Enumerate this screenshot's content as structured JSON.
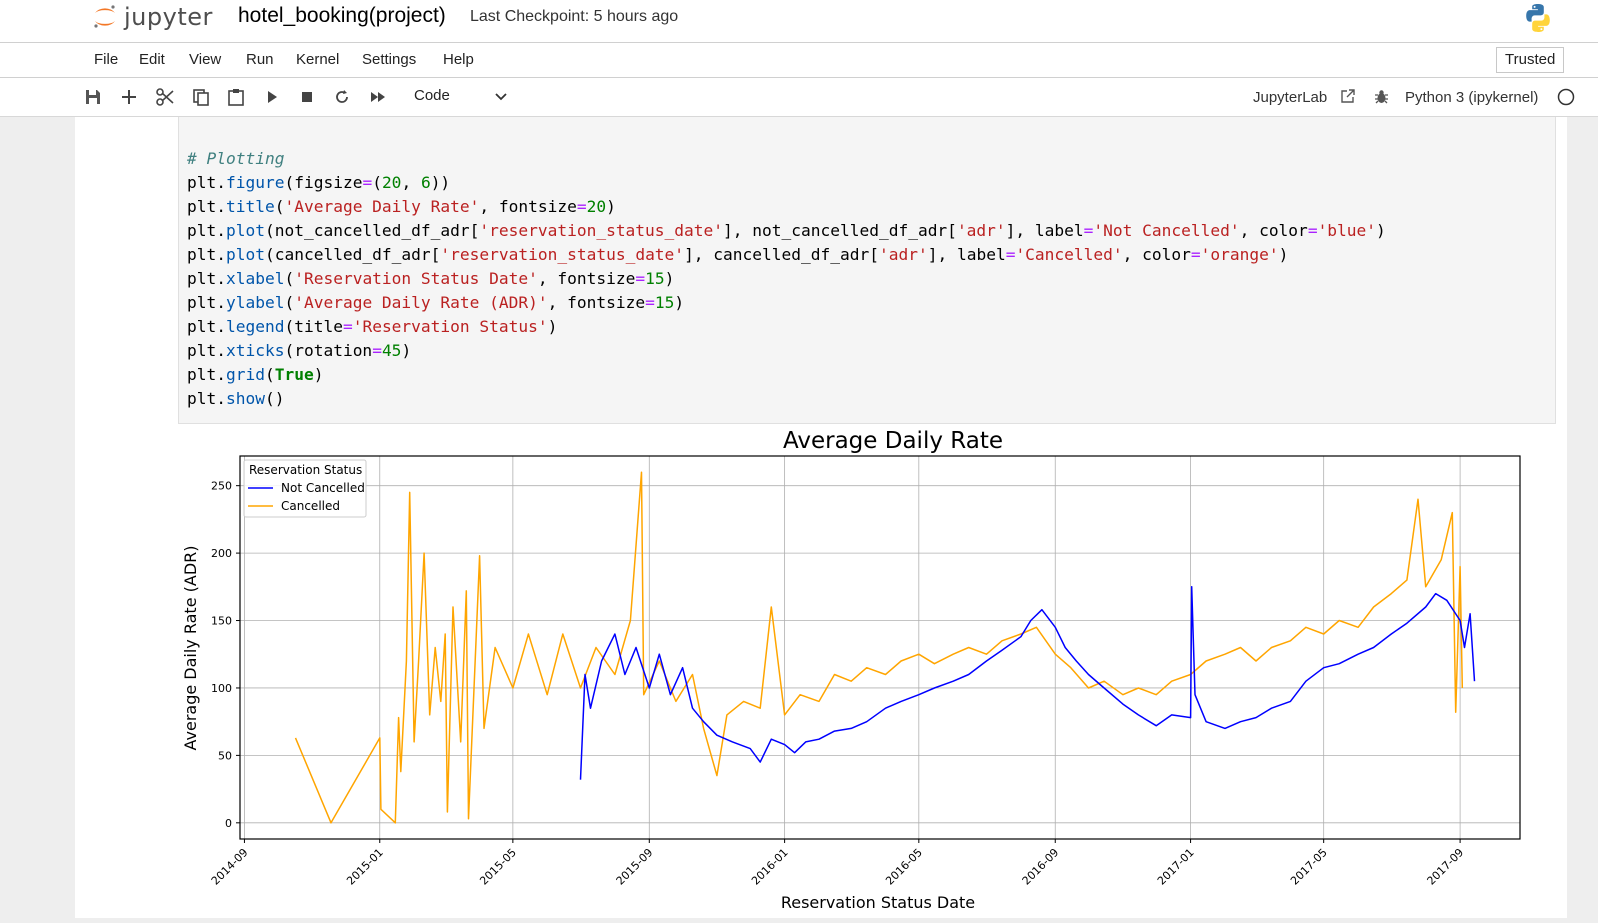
{
  "header": {
    "logo_text": "jupyter",
    "notebook_name": "hotel_booking(project)",
    "checkpoint": "Last Checkpoint: 5 hours ago"
  },
  "menu": {
    "items": [
      "File",
      "Edit",
      "View",
      "Run",
      "Kernel",
      "Settings",
      "Help"
    ],
    "trusted": "Trusted"
  },
  "toolbar": {
    "icons": [
      "save-icon",
      "add-cell-icon",
      "cut-icon",
      "copy-icon",
      "paste-icon",
      "run-icon",
      "stop-icon",
      "restart-icon",
      "fast-forward-icon"
    ],
    "cell_type": "Code",
    "jupyterlab": "JupyterLab",
    "kernel": "Python 3 (ipykernel)"
  },
  "code": {
    "lines": [
      "# Plotting",
      "plt.figure(figsize=(20, 6))",
      "plt.title('Average Daily Rate', fontsize=20)",
      "plt.plot(not_cancelled_df_adr['reservation_status_date'], not_cancelled_df_adr['adr'], label='Not Cancelled', color='blue')",
      "plt.plot(cancelled_df_adr['reservation_status_date'], cancelled_df_adr['adr'], label='Cancelled', color='orange')",
      "plt.xlabel('Reservation Status Date', fontsize=15)",
      "plt.ylabel('Average Daily Rate (ADR)', fontsize=15)",
      "plt.legend(title='Reservation Status')",
      "plt.xticks(rotation=45)",
      "plt.grid(True)",
      "plt.show()"
    ]
  },
  "chart_data": {
    "type": "line",
    "title": "Average Daily Rate",
    "xlabel": "Reservation Status Date",
    "ylabel": "Average Daily Rate (ADR)",
    "x_tick_labels": [
      "2014-09",
      "2015-01",
      "2015-05",
      "2015-09",
      "2016-01",
      "2016-05",
      "2016-09",
      "2017-01",
      "2017-05",
      "2017-09"
    ],
    "y_ticks": [
      0,
      50,
      100,
      150,
      200,
      250
    ],
    "ylim": [
      -12,
      272
    ],
    "xlim": [
      "2014-08-28",
      "2017-10-25"
    ],
    "grid": true,
    "legend": {
      "title": "Reservation Status",
      "placement": "top-left"
    },
    "series": [
      {
        "name": "Not Cancelled",
        "color": "#0000ff",
        "points": [
          [
            "2015-07-01",
            32
          ],
          [
            "2015-07-05",
            110
          ],
          [
            "2015-07-10",
            85
          ],
          [
            "2015-07-20",
            120
          ],
          [
            "2015-08-01",
            140
          ],
          [
            "2015-08-10",
            110
          ],
          [
            "2015-08-20",
            130
          ],
          [
            "2015-09-01",
            100
          ],
          [
            "2015-09-10",
            125
          ],
          [
            "2015-09-20",
            95
          ],
          [
            "2015-10-01",
            115
          ],
          [
            "2015-10-10",
            85
          ],
          [
            "2015-10-20",
            75
          ],
          [
            "2015-11-01",
            65
          ],
          [
            "2015-11-15",
            60
          ],
          [
            "2015-12-01",
            55
          ],
          [
            "2015-12-10",
            45
          ],
          [
            "2015-12-20",
            62
          ],
          [
            "2016-01-01",
            58
          ],
          [
            "2016-01-10",
            52
          ],
          [
            "2016-01-20",
            60
          ],
          [
            "2016-02-01",
            62
          ],
          [
            "2016-02-15",
            68
          ],
          [
            "2016-03-01",
            70
          ],
          [
            "2016-03-15",
            75
          ],
          [
            "2016-04-01",
            85
          ],
          [
            "2016-04-15",
            90
          ],
          [
            "2016-05-01",
            95
          ],
          [
            "2016-05-15",
            100
          ],
          [
            "2016-06-01",
            105
          ],
          [
            "2016-06-15",
            110
          ],
          [
            "2016-07-01",
            120
          ],
          [
            "2016-07-15",
            128
          ],
          [
            "2016-08-01",
            138
          ],
          [
            "2016-08-10",
            150
          ],
          [
            "2016-08-20",
            158
          ],
          [
            "2016-09-01",
            145
          ],
          [
            "2016-09-10",
            130
          ],
          [
            "2016-09-20",
            120
          ],
          [
            "2016-10-01",
            110
          ],
          [
            "2016-10-15",
            100
          ],
          [
            "2016-11-01",
            88
          ],
          [
            "2016-11-15",
            80
          ],
          [
            "2016-12-01",
            72
          ],
          [
            "2016-12-15",
            80
          ],
          [
            "2017-01-01",
            78
          ],
          [
            "2017-01-02",
            175
          ],
          [
            "2017-01-05",
            95
          ],
          [
            "2017-01-15",
            75
          ],
          [
            "2017-02-01",
            70
          ],
          [
            "2017-02-15",
            75
          ],
          [
            "2017-03-01",
            78
          ],
          [
            "2017-03-15",
            85
          ],
          [
            "2017-04-01",
            90
          ],
          [
            "2017-04-15",
            105
          ],
          [
            "2017-05-01",
            115
          ],
          [
            "2017-05-15",
            118
          ],
          [
            "2017-06-01",
            125
          ],
          [
            "2017-06-15",
            130
          ],
          [
            "2017-07-01",
            140
          ],
          [
            "2017-07-15",
            148
          ],
          [
            "2017-08-01",
            160
          ],
          [
            "2017-08-10",
            170
          ],
          [
            "2017-08-20",
            165
          ],
          [
            "2017-09-01",
            150
          ],
          [
            "2017-09-05",
            130
          ],
          [
            "2017-09-10",
            155
          ],
          [
            "2017-09-14",
            105
          ]
        ]
      },
      {
        "name": "Cancelled",
        "color": "#ffa500",
        "points": [
          [
            "2014-10-17",
            63
          ],
          [
            "2014-11-18",
            0
          ],
          [
            "2015-01-01",
            63
          ],
          [
            "2015-01-02",
            10
          ],
          [
            "2015-01-15",
            0
          ],
          [
            "2015-01-18",
            78
          ],
          [
            "2015-01-20",
            38
          ],
          [
            "2015-01-25",
            120
          ],
          [
            "2015-01-28",
            245
          ],
          [
            "2015-02-01",
            60
          ],
          [
            "2015-02-05",
            120
          ],
          [
            "2015-02-10",
            200
          ],
          [
            "2015-02-15",
            80
          ],
          [
            "2015-02-20",
            130
          ],
          [
            "2015-02-25",
            90
          ],
          [
            "2015-03-01",
            140
          ],
          [
            "2015-03-03",
            8
          ],
          [
            "2015-03-08",
            160
          ],
          [
            "2015-03-15",
            60
          ],
          [
            "2015-03-20",
            172
          ],
          [
            "2015-03-22",
            3
          ],
          [
            "2015-04-01",
            198
          ],
          [
            "2015-04-05",
            70
          ],
          [
            "2015-04-15",
            130
          ],
          [
            "2015-05-01",
            100
          ],
          [
            "2015-05-15",
            140
          ],
          [
            "2015-06-01",
            95
          ],
          [
            "2015-06-15",
            140
          ],
          [
            "2015-07-01",
            100
          ],
          [
            "2015-07-15",
            130
          ],
          [
            "2015-08-01",
            110
          ],
          [
            "2015-08-15",
            150
          ],
          [
            "2015-08-25",
            260
          ],
          [
            "2015-08-27",
            95
          ],
          [
            "2015-09-10",
            120
          ],
          [
            "2015-09-25",
            90
          ],
          [
            "2015-10-10",
            110
          ],
          [
            "2015-10-20",
            70
          ],
          [
            "2015-11-01",
            35
          ],
          [
            "2015-11-10",
            80
          ],
          [
            "2015-11-25",
            90
          ],
          [
            "2015-12-10",
            85
          ],
          [
            "2015-12-20",
            160
          ],
          [
            "2016-01-01",
            80
          ],
          [
            "2016-01-15",
            95
          ],
          [
            "2016-02-01",
            90
          ],
          [
            "2016-02-15",
            110
          ],
          [
            "2016-03-01",
            105
          ],
          [
            "2016-03-15",
            115
          ],
          [
            "2016-04-01",
            110
          ],
          [
            "2016-04-15",
            120
          ],
          [
            "2016-05-01",
            125
          ],
          [
            "2016-05-15",
            118
          ],
          [
            "2016-06-01",
            125
          ],
          [
            "2016-06-15",
            130
          ],
          [
            "2016-07-01",
            125
          ],
          [
            "2016-07-15",
            135
          ],
          [
            "2016-08-01",
            140
          ],
          [
            "2016-08-15",
            145
          ],
          [
            "2016-09-01",
            125
          ],
          [
            "2016-09-15",
            115
          ],
          [
            "2016-10-01",
            100
          ],
          [
            "2016-10-15",
            105
          ],
          [
            "2016-11-01",
            95
          ],
          [
            "2016-11-15",
            100
          ],
          [
            "2016-12-01",
            95
          ],
          [
            "2016-12-15",
            105
          ],
          [
            "2017-01-01",
            110
          ],
          [
            "2017-01-15",
            120
          ],
          [
            "2017-02-01",
            125
          ],
          [
            "2017-02-15",
            130
          ],
          [
            "2017-03-01",
            120
          ],
          [
            "2017-03-15",
            130
          ],
          [
            "2017-04-01",
            135
          ],
          [
            "2017-04-15",
            145
          ],
          [
            "2017-05-01",
            140
          ],
          [
            "2017-05-15",
            150
          ],
          [
            "2017-06-01",
            145
          ],
          [
            "2017-06-15",
            160
          ],
          [
            "2017-07-01",
            170
          ],
          [
            "2017-07-15",
            180
          ],
          [
            "2017-07-25",
            240
          ],
          [
            "2017-08-01",
            175
          ],
          [
            "2017-08-15",
            195
          ],
          [
            "2017-08-25",
            230
          ],
          [
            "2017-08-28",
            82
          ],
          [
            "2017-09-01",
            190
          ],
          [
            "2017-09-03",
            100
          ]
        ]
      }
    ]
  }
}
